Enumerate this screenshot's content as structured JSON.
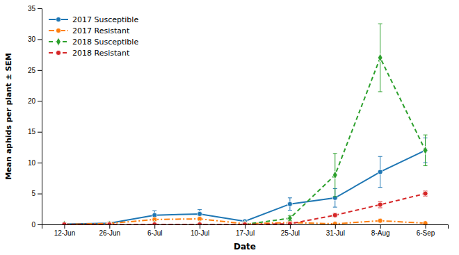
{
  "chart_data": {
    "type": "line",
    "xlabel": "Date",
    "ylabel": "Mean aphids per plant ± SEM",
    "categories": [
      "12-Jun",
      "26-Jun",
      "6-Jul",
      "10-Jul",
      "17-Jul",
      "25-Jul",
      "31-Jul",
      "8-Aug",
      "6-Sep"
    ],
    "series": [
      {
        "name": "2017 Susceptible",
        "line_style": "solid",
        "marker": "circle",
        "values": [
          0.05,
          0.2,
          1.5,
          1.7,
          0.5,
          3.3,
          4.3,
          8.5,
          12.0
        ],
        "errors": [
          0.05,
          0.1,
          0.7,
          0.7,
          0.2,
          1.0,
          1.5,
          2.5,
          2.0
        ]
      },
      {
        "name": "2017 Resistant",
        "line_style": "dashdot",
        "marker": "circle",
        "values": [
          0.02,
          0.15,
          0.8,
          0.9,
          0.1,
          0.3,
          0.1,
          0.6,
          0.2
        ],
        "errors": [
          0.02,
          0.05,
          0.2,
          0.2,
          0.05,
          0.1,
          0.03,
          0.15,
          0.03
        ]
      },
      {
        "name": "2018 Susceptible",
        "line_style": "dashed",
        "marker": "diamond",
        "values": [
          0.0,
          0.0,
          0.0,
          0.0,
          0.0,
          1.0,
          8.0,
          27.0,
          12.0
        ],
        "errors": [
          0.0,
          0.0,
          0.0,
          0.0,
          0.0,
          0.4,
          3.5,
          5.5,
          2.5
        ]
      },
      {
        "name": "2018 Resistant",
        "line_style": "dashed",
        "marker": "circle",
        "values": [
          0.0,
          0.0,
          0.0,
          0.0,
          0.0,
          0.1,
          1.5,
          3.2,
          5.0
        ],
        "errors": [
          0.0,
          0.0,
          0.0,
          0.0,
          0.0,
          0.05,
          0.3,
          0.5,
          0.4
        ]
      }
    ],
    "ylim": [
      0,
      35
    ],
    "yticks": [
      0,
      5,
      10,
      15,
      20,
      25,
      30,
      35
    ],
    "grid": false,
    "legend": "upper left"
  }
}
